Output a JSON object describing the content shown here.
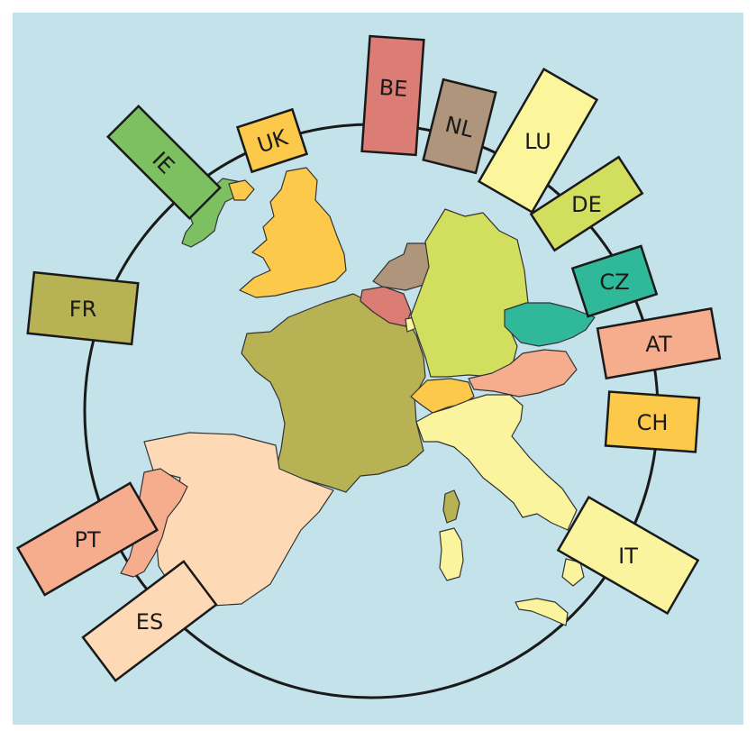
{
  "map": {
    "background_color": "#c4e2ea",
    "outline_color": "#1a1a1a"
  },
  "countries": [
    {
      "code": "UK",
      "label": "UK",
      "color": "#fcc94a"
    },
    {
      "code": "IE",
      "label": "IE",
      "color": "#7cc062"
    },
    {
      "code": "FR",
      "label": "FR",
      "color": "#b7b253"
    },
    {
      "code": "BE",
      "label": "BE",
      "color": "#db7c75"
    },
    {
      "code": "NL",
      "label": "NL",
      "color": "#ae957c"
    },
    {
      "code": "LU",
      "label": "LU",
      "color": "#fbf69c"
    },
    {
      "code": "DE",
      "label": "DE",
      "color": "#d2de5e"
    },
    {
      "code": "CZ",
      "label": "CZ",
      "color": "#2fb89a"
    },
    {
      "code": "AT",
      "label": "AT",
      "color": "#f6ad8e"
    },
    {
      "code": "CH",
      "label": "CH",
      "color": "#fcc94a"
    },
    {
      "code": "IT",
      "label": "IT",
      "color": "#faf49e"
    },
    {
      "code": "PT",
      "label": "PT",
      "color": "#f6ad8e"
    },
    {
      "code": "ES",
      "label": "ES",
      "color": "#fddab5"
    }
  ]
}
